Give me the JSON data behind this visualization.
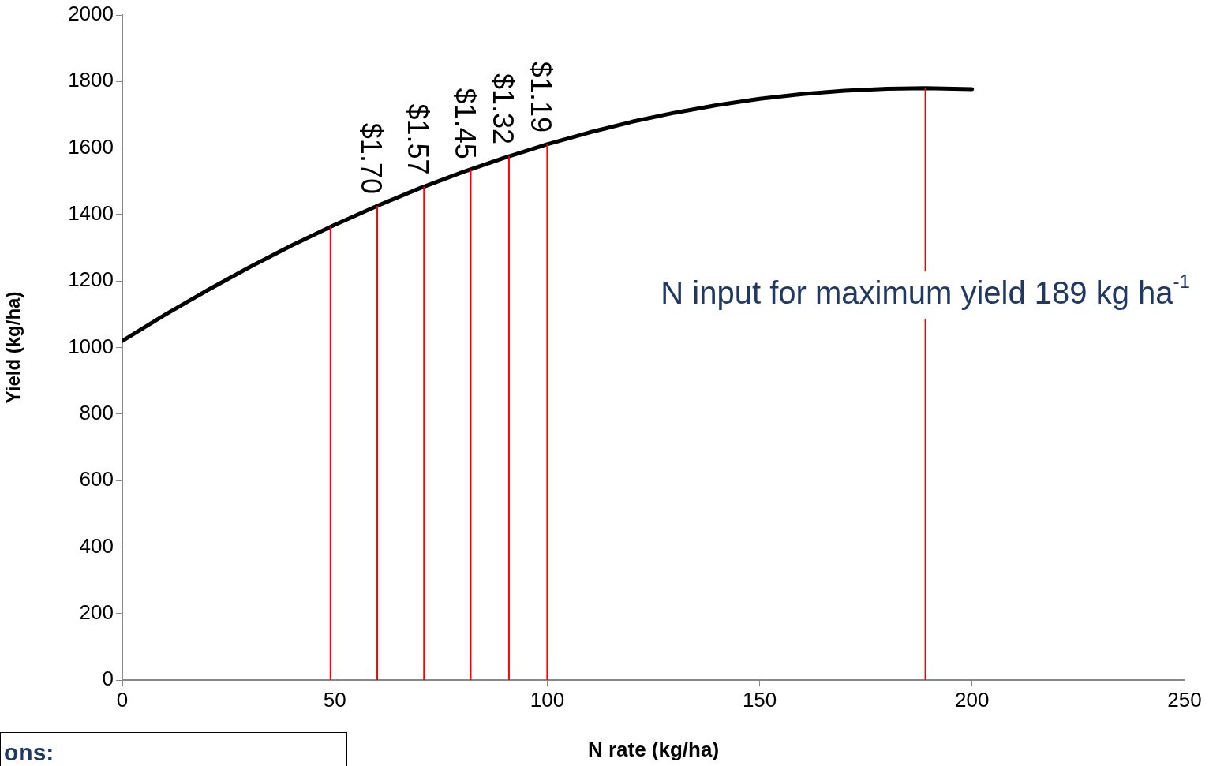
{
  "chart_data": {
    "type": "line",
    "xlabel": "N rate (kg/ha)",
    "ylabel": "Yield (kg/ha)",
    "xlim": [
      0,
      250
    ],
    "xticks": [
      0,
      50,
      100,
      150,
      200,
      250
    ],
    "ylim": [
      0,
      2000
    ],
    "yticks": [
      0,
      200,
      400,
      600,
      800,
      1000,
      1200,
      1400,
      1600,
      1800,
      2000
    ],
    "grid": false,
    "legend": false,
    "marker": "none",
    "line_style": "solid",
    "series": [
      {
        "color": "#000000",
        "x": [
          0,
          10,
          20,
          30,
          40,
          50,
          60,
          70,
          80,
          90,
          100,
          110,
          120,
          130,
          140,
          150,
          160,
          170,
          180,
          189,
          200
        ],
        "values": [
          1020,
          1098,
          1172,
          1242,
          1308,
          1369,
          1426,
          1479,
          1527,
          1571,
          1611,
          1647,
          1679,
          1706,
          1729,
          1748,
          1762,
          1772,
          1778,
          1780,
          1777
        ]
      }
    ],
    "ref_lines": [
      {
        "axis": "x",
        "value": 49,
        "label": null,
        "color": "#ff0000"
      },
      {
        "axis": "x",
        "value": 60,
        "label": null,
        "color": "#ff0000"
      },
      {
        "axis": "x",
        "value": 71,
        "label": null,
        "color": "#ff0000"
      },
      {
        "axis": "x",
        "value": 82,
        "label": null,
        "color": "#ff0000"
      },
      {
        "axis": "x",
        "value": 91,
        "label": null,
        "color": "#ff0000"
      },
      {
        "axis": "x",
        "value": 100,
        "label": null,
        "color": "#ff0000"
      },
      {
        "axis": "x",
        "value": 189,
        "label": "N input for maximum yield 189 kg ha$^{-1}$",
        "color": "#ff0000"
      }
    ],
    "annotations": [
      "ons:",
      {
        "text": "$1.70",
        "x": 60,
        "y": 1426
      },
      {
        "text": "$1.57",
        "x": 71,
        "y": 1484
      },
      {
        "text": "$1.45",
        "x": 82,
        "y": 1531
      },
      {
        "text": "$1.32",
        "x": 91,
        "y": 1575
      },
      {
        "text": "$1.19",
        "x": 100,
        "y": 1611
      }
    ]
  }
}
